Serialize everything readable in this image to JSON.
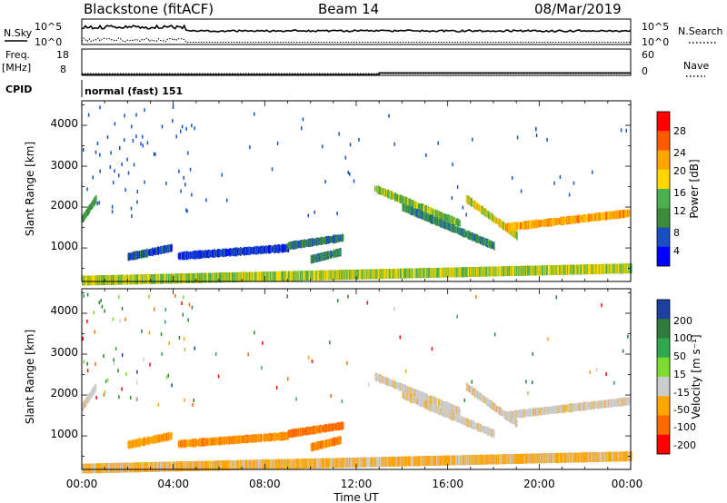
{
  "header": {
    "station": "Blackstone (fitACF)",
    "beam": "Beam 14",
    "date": "08/Mar/2019"
  },
  "summary": {
    "nsky_label": "N.Sky",
    "nsearch_label": "N.Search",
    "log_top": "10^5",
    "log_bottom": "10^0",
    "freq_label": "Freq.",
    "freq_unit": "[MHz]",
    "freq_ticks": [
      "18",
      "8"
    ],
    "nave_label": "Nave",
    "nave_ticks": [
      "60",
      "0"
    ],
    "cpid_label": "CPID",
    "cpid_text": "normal (fast) 151"
  },
  "panels": {
    "ylabel": "Slant Range [km]",
    "yticks": [
      "4000",
      "3000",
      "2000",
      "1000"
    ],
    "xlabel": "Time UT",
    "xticks": [
      "00:00",
      "04:00",
      "08:00",
      "12:00",
      "16:00",
      "20:00",
      "00:00"
    ],
    "power_title": "Power [dB]",
    "power_ticks": [
      "28",
      "24",
      "20",
      "16",
      "12",
      "8",
      "4"
    ],
    "velocity_title": "Velocity [m s⁻¹]",
    "velocity_ticks": [
      "200",
      "100",
      "50",
      "15",
      "-15",
      "-50",
      "-100",
      "-200"
    ]
  },
  "chart_data": {
    "type": "heatmap",
    "x_range_hours": [
      0,
      24
    ],
    "y_range_km": [
      180,
      4600
    ],
    "power_colors": [
      "#0000ff",
      "#1a4fc4",
      "#3c8c3c",
      "#4caf50",
      "#ffd700",
      "#ffa500",
      "#ff5a00",
      "#ff0000"
    ],
    "velocity_colors": [
      "#ff0000",
      "#ff6a00",
      "#ffa500",
      "#cccccc",
      "#7cdc30",
      "#2fa84f",
      "#2f7d3a",
      "#1e3fa0"
    ],
    "features": [
      {
        "t": [
          0.0,
          0.6
        ],
        "r": [
          1700,
          2200
        ],
        "power": 12,
        "velocity": -5
      },
      {
        "t": [
          2.0,
          3.9
        ],
        "r": [
          780,
          1000
        ],
        "power": 6,
        "velocity": -40
      },
      {
        "t": [
          4.2,
          9.0
        ],
        "r": [
          800,
          1000
        ],
        "power": 5,
        "velocity": -45
      },
      {
        "t": [
          9.0,
          11.4
        ],
        "r": [
          1050,
          1250
        ],
        "power": 8,
        "velocity": -60
      },
      {
        "t": [
          10.0,
          11.3
        ],
        "r": [
          720,
          900
        ],
        "power": 10,
        "velocity": -50
      },
      {
        "t": [
          12.8,
          16.5
        ],
        "r": [
          2450,
          1600
        ],
        "power": 14,
        "velocity": -5
      },
      {
        "t": [
          14.0,
          18.0
        ],
        "r": [
          2000,
          1050
        ],
        "power": 10,
        "velocity": -5
      },
      {
        "t": [
          16.8,
          19.0
        ],
        "r": [
          2200,
          1300
        ],
        "power": 18,
        "velocity": -5
      },
      {
        "t": [
          18.5,
          23.9
        ],
        "r": [
          1500,
          1850
        ],
        "power": 22,
        "velocity": -5
      },
      {
        "t": [
          0.0,
          24.0
        ],
        "r": [
          200,
          500
        ],
        "power": 16,
        "velocity": -20
      }
    ],
    "freq_mhz": [
      {
        "t": [
          0,
          13.0
        ],
        "value": 10.3
      },
      {
        "t": [
          13.0,
          24
        ],
        "value": 11.0
      }
    ],
    "nave": 0
  }
}
